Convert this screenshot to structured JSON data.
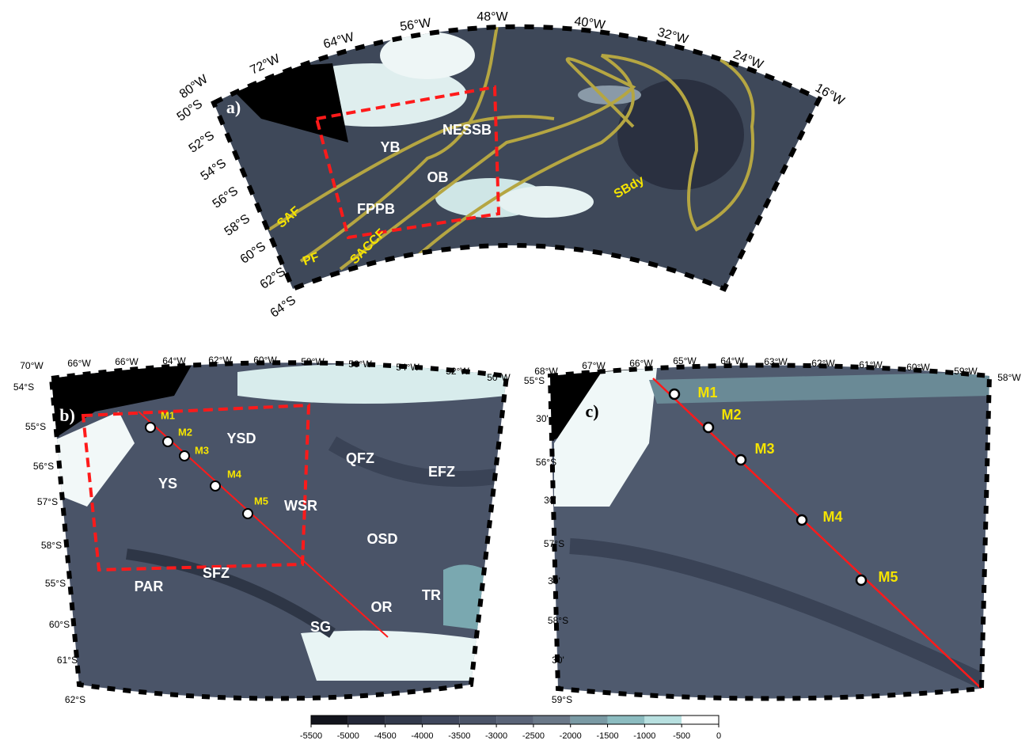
{
  "panel_a": {
    "label": "a)",
    "longitudes": [
      "80°W",
      "72°W",
      "64°W",
      "56°W",
      "48°W",
      "40°W",
      "32°W",
      "24°W",
      "16°W"
    ],
    "latitudes": [
      "50°S",
      "52°S",
      "54°S",
      "56°S",
      "58°S",
      "60°S",
      "62°S",
      "64°S"
    ],
    "regions": [
      "NESSB",
      "YB",
      "OB",
      "FPPB"
    ],
    "fronts": [
      "SAF",
      "PF",
      "SACCF",
      "SBdy"
    ]
  },
  "panel_b": {
    "label": "b)",
    "longitudes": [
      "70°W",
      "66°W",
      "66°W",
      "64°W",
      "62°W",
      "60°W",
      "58°W",
      "56°W",
      "54°W",
      "52°W",
      "50°W"
    ],
    "latitudes": [
      "54°S",
      "55°S",
      "56°S",
      "57°S",
      "58°S",
      "55°S",
      "60°S",
      "61°S",
      "62°S"
    ],
    "regions": [
      "YSD",
      "YS",
      "WSR",
      "QFZ",
      "EFZ",
      "OSD",
      "PAR",
      "SFZ",
      "OR",
      "TR",
      "SG"
    ],
    "moorings": [
      "M1",
      "M2",
      "M3",
      "M4",
      "M5"
    ]
  },
  "panel_c": {
    "label": "c)",
    "longitudes": [
      "68°W",
      "67°W",
      "66°W",
      "65°W",
      "64°W",
      "63°W",
      "62°W",
      "61°W",
      "60°W",
      "59°W",
      "58°W"
    ],
    "latitudes": [
      "55°S",
      "30'",
      "56°S",
      "30'",
      "57°S",
      "30'",
      "58°S",
      "30'",
      "59°S"
    ],
    "moorings": [
      "M1",
      "M2",
      "M3",
      "M4",
      "M5"
    ]
  },
  "colorbar": {
    "ticks": [
      -5500,
      -5000,
      -4500,
      -4000,
      -3500,
      -3000,
      -2500,
      -2000,
      -1500,
      -1000,
      -500,
      0
    ]
  }
}
